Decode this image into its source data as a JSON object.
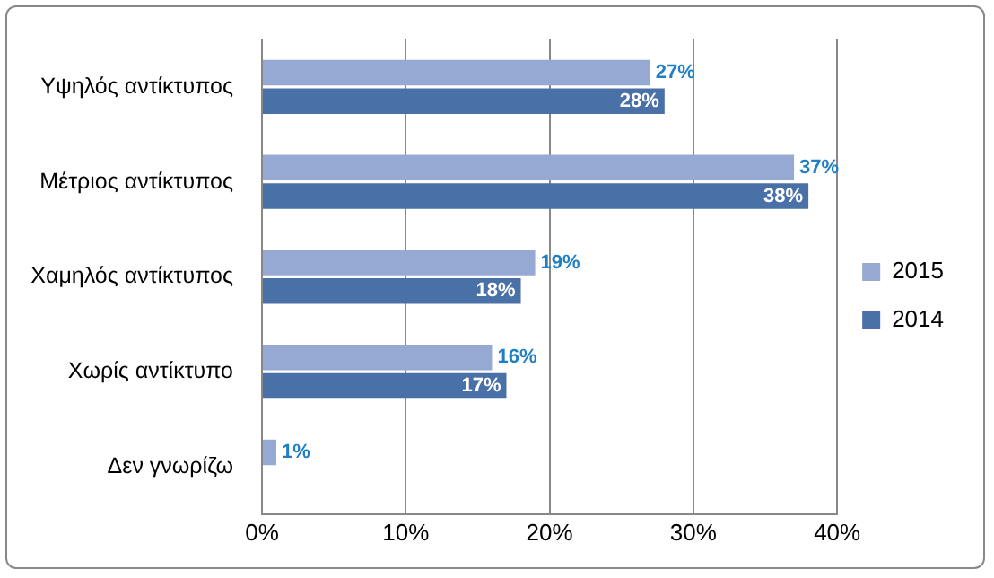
{
  "chart_data": {
    "type": "bar",
    "orientation": "horizontal",
    "categories": [
      "Υψηλός αντίκτυπος",
      "Μέτριος αντίκτυπος",
      "Χαμηλός αντίκτυπος",
      "Χωρίς αντίκτυπο",
      "Δεν γνωρίζω"
    ],
    "series": [
      {
        "name": "2015",
        "color": "#95a9d3",
        "values": [
          27,
          37,
          19,
          16,
          1
        ],
        "value_labels": [
          "27%",
          "37%",
          "19%",
          "16%",
          "1%"
        ]
      },
      {
        "name": "2014",
        "color": "#4a70a8",
        "values": [
          28,
          38,
          18,
          17,
          null
        ],
        "value_labels": [
          "28%",
          "38%",
          "18%",
          "17%",
          null
        ]
      }
    ],
    "xlim": [
      0,
      40
    ],
    "xticks": [
      {
        "value": 0,
        "label": "0%"
      },
      {
        "value": 10,
        "label": "10%"
      },
      {
        "value": 20,
        "label": "20%"
      },
      {
        "value": 30,
        "label": "30%"
      },
      {
        "value": 40,
        "label": "40%"
      }
    ],
    "grid": "x",
    "legend": "right"
  }
}
